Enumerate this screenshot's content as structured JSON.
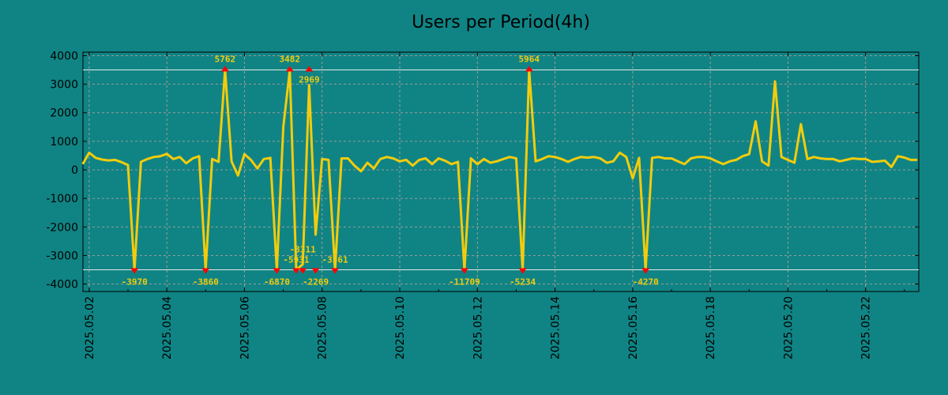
{
  "chart_data": {
    "type": "line",
    "title": "Users per Period(4h)",
    "xlabel": "",
    "ylabel": "",
    "x_start": "2025.05.01 20:00",
    "x_step_hours": 4,
    "x_tick_labels": [
      "2025.05.02",
      "2025.05.04",
      "2025.05.06",
      "2025.05.08",
      "2025.05.10",
      "2025.05.12",
      "2025.05.14",
      "2025.05.16",
      "2025.05.18",
      "2025.05.20",
      "2025.05.22"
    ],
    "y_ticks": [
      4000,
      3000,
      2000,
      1000,
      0,
      -1000,
      -2000,
      -3000,
      -4000
    ],
    "ylim": [
      -4200,
      4200
    ],
    "clip": [
      -3500,
      3500
    ],
    "threshold_lines": [
      3500,
      -3500
    ],
    "grid": true,
    "colors": {
      "background": "#108484",
      "line": "#f2cc0c",
      "marker": "#ff0000",
      "annotation": "#f2cc0c",
      "threshold": "#e6e6e6"
    },
    "series": [
      {
        "name": "Users",
        "values": [
          200,
          600,
          420,
          360,
          330,
          350,
          270,
          170,
          -3970,
          280,
          380,
          450,
          480,
          560,
          380,
          450,
          230,
          400,
          480,
          -3860,
          380,
          280,
          5762,
          300,
          -200,
          550,
          350,
          50,
          380,
          420,
          -6870,
          1500,
          3482,
          -5931,
          -3311,
          2969,
          -2269,
          380,
          350,
          -3561,
          400,
          400,
          150,
          -50,
          250,
          50,
          380,
          450,
          400,
          300,
          350,
          150,
          350,
          400,
          200,
          400,
          320,
          200,
          280,
          -11709,
          400,
          200,
          380,
          250,
          300,
          380,
          450,
          400,
          -5234,
          5964,
          300,
          380,
          480,
          450,
          380,
          280,
          380,
          450,
          430,
          450,
          400,
          250,
          300,
          600,
          450,
          -300,
          420,
          -4270,
          420,
          450,
          400,
          400,
          300,
          200,
          400,
          450,
          450,
          400,
          300,
          200,
          300,
          350,
          480,
          550,
          1700,
          300,
          150,
          3100,
          450,
          350,
          250,
          1600,
          380,
          450,
          400,
          380,
          380,
          300,
          350,
          400,
          380,
          380,
          280,
          300,
          320,
          100,
          480,
          430,
          350,
          350
        ]
      }
    ],
    "annotations": [
      {
        "index": 8,
        "label": "-3970",
        "pos": "bottom"
      },
      {
        "index": 19,
        "label": "-3860",
        "pos": "bottom"
      },
      {
        "index": 22,
        "label": "5762",
        "pos": "top"
      },
      {
        "index": 30,
        "label": "-6870",
        "pos": "bottom"
      },
      {
        "index": 32,
        "label": "3482",
        "pos": "top"
      },
      {
        "index": 33,
        "label": "-5931",
        "pos": "bottom"
      },
      {
        "index": 34,
        "label": "-3311",
        "pos": "bottom"
      },
      {
        "index": 35,
        "label": "2969",
        "pos": "top"
      },
      {
        "index": 36,
        "label": "-2269",
        "pos": "bottom"
      },
      {
        "index": 39,
        "label": "-3561",
        "pos": "bottom"
      },
      {
        "index": 59,
        "label": "-11709",
        "pos": "bottom"
      },
      {
        "index": 68,
        "label": "-5234",
        "pos": "bottom"
      },
      {
        "index": 69,
        "label": "5964",
        "pos": "top"
      },
      {
        "index": 87,
        "label": "-4270",
        "pos": "bottom"
      }
    ]
  }
}
